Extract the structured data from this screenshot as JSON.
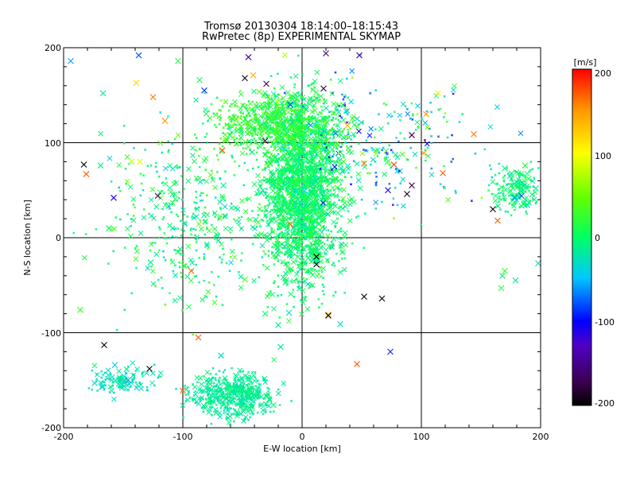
{
  "chart_data": {
    "type": "scatter",
    "title": "Tromsø 20130304 18:14:00–18:15:43",
    "subtitle": "RwPretec (8p) EXPERIMENTAL SKYMAP",
    "xlabel": "E-W location [km]",
    "ylabel": "N-S location [km]",
    "xlim": [
      -200,
      200
    ],
    "ylim": [
      -200,
      200
    ],
    "xticks": [
      "-200",
      "-100",
      "0",
      "100",
      "200"
    ],
    "yticks": [
      "-200",
      "-100",
      "0",
      "100",
      "200"
    ],
    "grid": true,
    "colorbar": {
      "label": "[m/s]",
      "range": [
        -200,
        200
      ],
      "ticks": [
        "200",
        "100",
        "0",
        "-100",
        "-200"
      ],
      "position": "right"
    },
    "marker_types": [
      "x",
      "dot"
    ],
    "series": [
      {
        "points": [
          [
            -194,
            186,
            -60
          ],
          [
            -137,
            192,
            -80
          ],
          [
            -45,
            190,
            -150
          ],
          [
            -82,
            155,
            -90
          ],
          [
            -30,
            162,
            -170
          ],
          [
            18,
            157,
            -180
          ],
          [
            20,
            194,
            -160
          ],
          [
            48,
            192,
            -140
          ],
          [
            -139,
            163,
            120
          ],
          [
            -125,
            148,
            160
          ],
          [
            -167,
            152,
            -20
          ],
          [
            -115,
            123,
            150
          ],
          [
            -104,
            186,
            20
          ],
          [
            -86,
            166,
            10
          ],
          [
            -48,
            168,
            -190
          ],
          [
            -41,
            171,
            140
          ],
          [
            -10,
            140,
            -80
          ],
          [
            -3,
            130,
            -20
          ],
          [
            38,
            118,
            140
          ],
          [
            92,
            108,
            -170
          ],
          [
            104,
            130,
            150
          ],
          [
            114,
            152,
            110
          ],
          [
            144,
            109,
            160
          ],
          [
            -183,
            77,
            -200
          ],
          [
            -181,
            67,
            170
          ],
          [
            -169,
            76,
            -10
          ],
          [
            -158,
            42,
            -110
          ],
          [
            -143,
            80,
            80
          ],
          [
            -136,
            80,
            90
          ],
          [
            -121,
            44,
            -170
          ],
          [
            -67,
            92,
            170
          ],
          [
            -42,
            90,
            -10
          ],
          [
            -2,
            92,
            40
          ],
          [
            52,
            78,
            160
          ],
          [
            77,
            77,
            180
          ],
          [
            92,
            55,
            -170
          ],
          [
            88,
            46,
            -190
          ],
          [
            72,
            50,
            -110
          ],
          [
            102,
            89,
            150
          ],
          [
            118,
            68,
            170
          ],
          [
            160,
            30,
            -200
          ],
          [
            164,
            18,
            170
          ],
          [
            178,
            42,
            -60
          ],
          [
            184,
            44,
            -80
          ],
          [
            178,
            57,
            -10
          ],
          [
            190,
            62,
            10
          ],
          [
            196,
            52,
            -20
          ],
          [
            170,
            73,
            -10
          ],
          [
            187,
            76,
            20
          ],
          [
            -186,
            -76,
            30
          ],
          [
            -93,
            -35,
            160
          ],
          [
            -87,
            -105,
            170
          ],
          [
            -20,
            -92,
            -10
          ],
          [
            12,
            -20,
            -200
          ],
          [
            22,
            -81,
            150
          ],
          [
            46,
            -133,
            170
          ],
          [
            52,
            -62,
            -200
          ],
          [
            67,
            -64,
            -200
          ],
          [
            74,
            -120,
            -90
          ],
          [
            -166,
            -113,
            -200
          ],
          [
            -128,
            -138,
            -200
          ],
          [
            -100,
            -161,
            160
          ],
          [
            -68,
            -124,
            -30
          ],
          [
            -55,
            -146,
            -20
          ],
          [
            -37,
            -165,
            -10
          ],
          [
            -24,
            -176,
            0
          ],
          [
            -157,
            -134,
            -50
          ],
          [
            -174,
            -153,
            -40
          ],
          [
            32,
            -91,
            -30
          ],
          [
            12,
            -28,
            -200
          ],
          [
            -10,
            14,
            160
          ],
          [
            22,
            -82,
            -200
          ],
          [
            167,
            -53,
            20
          ],
          [
            170,
            -35,
            30
          ],
          [
            168,
            -40,
            -10
          ],
          [
            179,
            -45,
            -20
          ],
          [
            198,
            -27,
            -30
          ],
          [
            -104,
            -15,
            10
          ],
          [
            -168,
            -157,
            -30
          ],
          [
            -146,
            -150,
            -60
          ],
          [
            -11,
            -79,
            -30
          ],
          [
            -18,
            -115,
            -20
          ],
          [
            -48,
            -44,
            40
          ],
          [
            -31,
            -80,
            0
          ],
          [
            -127,
            -26,
            -10
          ],
          [
            -162,
            10,
            -5
          ],
          [
            -66,
            55,
            -20
          ],
          [
            -31,
            102,
            -170
          ]
        ]
      }
    ]
  }
}
